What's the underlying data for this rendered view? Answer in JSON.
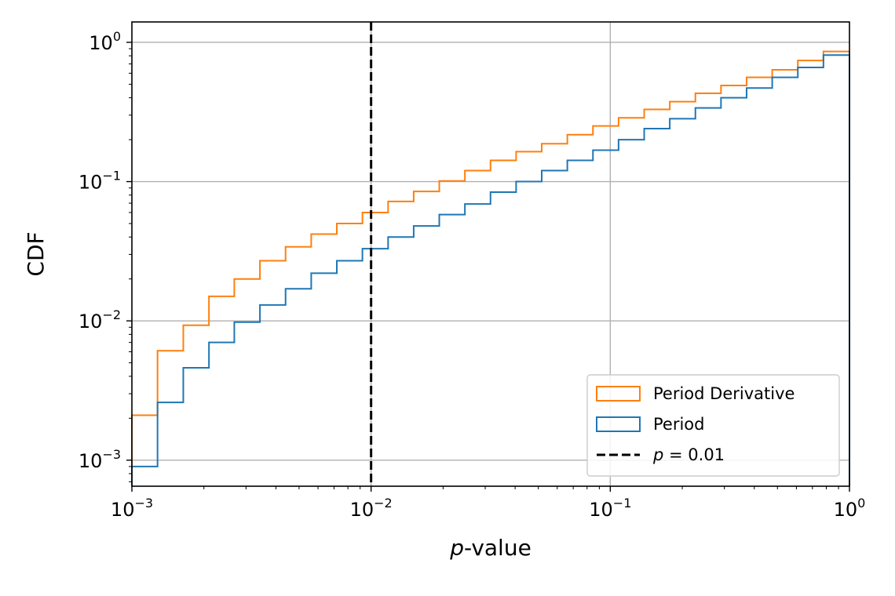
{
  "chart_data": {
    "type": "line",
    "xscale": "log",
    "yscale": "log",
    "xlabel": "p-value",
    "ylabel": "CDF",
    "xlim": [
      0.001,
      1
    ],
    "ylim": [
      0.00065,
      1.4
    ],
    "grid": true,
    "legend_position": "lower-right",
    "x_tick_labels": [
      {
        "value": 0.001,
        "base": "10",
        "exp": "−3"
      },
      {
        "value": 0.01,
        "base": "10",
        "exp": "−2"
      },
      {
        "value": 0.1,
        "base": "10",
        "exp": "−1"
      },
      {
        "value": 1,
        "base": "10",
        "exp": "0"
      }
    ],
    "y_tick_labels": [
      {
        "value": 0.001,
        "base": "10",
        "exp": "−3"
      },
      {
        "value": 0.01,
        "base": "10",
        "exp": "−2"
      },
      {
        "value": 0.1,
        "base": "10",
        "exp": "−1"
      },
      {
        "value": 1,
        "base": "10",
        "exp": "0"
      }
    ],
    "bin_edges": [
      0.001,
      0.00128,
      0.00164,
      0.0021,
      0.00268,
      0.00343,
      0.00439,
      0.00562,
      0.00719,
      0.0092,
      0.01178,
      0.01507,
      0.01928,
      0.02467,
      0.03157,
      0.0404,
      0.05169,
      0.06614,
      0.08464,
      0.1083,
      0.1386,
      0.1773,
      0.2269,
      0.2903,
      0.3715,
      0.4754,
      0.6083,
      0.7783,
      1.0
    ],
    "series": [
      {
        "name": "Period Derivative",
        "color": "#ff7f0e",
        "values": [
          0.0021,
          0.0061,
          0.0093,
          0.015,
          0.02,
          0.027,
          0.034,
          0.042,
          0.05,
          0.06,
          0.072,
          0.085,
          0.101,
          0.12,
          0.142,
          0.164,
          0.187,
          0.217,
          0.251,
          0.287,
          0.33,
          0.375,
          0.43,
          0.49,
          0.56,
          0.635,
          0.74,
          0.86
        ]
      },
      {
        "name": "Period",
        "color": "#1f77b4",
        "values": [
          0.0009,
          0.0026,
          0.0046,
          0.007,
          0.0098,
          0.013,
          0.017,
          0.022,
          0.027,
          0.033,
          0.04,
          0.048,
          0.058,
          0.069,
          0.084,
          0.1,
          0.12,
          0.142,
          0.168,
          0.2,
          0.24,
          0.283,
          0.338,
          0.4,
          0.47,
          0.56,
          0.66,
          0.81
        ]
      }
    ],
    "reference_line": {
      "name_prefix": "p",
      "name_suffix": " = 0.01",
      "x": 0.01,
      "color": "#000000",
      "style": "dashed"
    }
  }
}
